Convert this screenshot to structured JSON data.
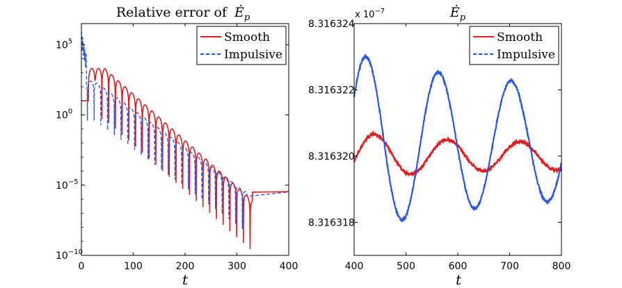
{
  "chart_data": [
    {
      "type": "line",
      "title": "Relative error of Ė_p",
      "title_text": "Relative error of",
      "title_symbol": "Ė",
      "title_subscript": "p",
      "xlabel": "t",
      "ylabel": "",
      "xlim": [
        0,
        400
      ],
      "ylim_log10": [
        -10,
        6.5
      ],
      "yscale": "log",
      "x_ticks": [
        "0",
        "100",
        "200",
        "300",
        "400"
      ],
      "y_ticks": [
        {
          "base": "10",
          "exp": "5"
        },
        {
          "base": "10",
          "exp": "0"
        },
        {
          "base": "10",
          "exp": "−5"
        },
        {
          "base": "10",
          "exp": "−10"
        }
      ],
      "legend_position": "top-right",
      "series": [
        {
          "name": "Smooth",
          "color": "#e41a1c",
          "style": "solid",
          "baseline_log10": 1.0,
          "peak_log10": 3.3,
          "first_peak_t": 45,
          "final_log10": -5.5
        },
        {
          "name": "Impulsive",
          "color": "#2a56e8",
          "style": "dashed",
          "start_log10": 5.4,
          "plateau_log10": 2.4,
          "final_log10": -5.5
        }
      ]
    },
    {
      "type": "line",
      "title": "Ė_p",
      "title_symbol": "Ė",
      "title_subscript": "p",
      "xlabel": "t",
      "ylabel": "",
      "xlim": [
        400,
        800
      ],
      "ylim": [
        8.316317,
        8.316324
      ],
      "y_multiplier": "x 10",
      "y_multiplier_exp": "−7",
      "x_ticks": [
        "400",
        "500",
        "600",
        "700",
        "800"
      ],
      "y_ticks": [
        "8.316318",
        "8.316320",
        "8.316322",
        "8.316324"
      ],
      "legend_position": "top-right",
      "series": [
        {
          "name": "Smooth",
          "color": "#e41a1c",
          "style": "solid",
          "mean": 8.31632,
          "amplitude_start": 7.5e-07,
          "period": 140,
          "phase_t": 440
        },
        {
          "name": "Impulsive",
          "color": "#2a56e8",
          "style": "solid",
          "mean": 8.3163204,
          "amplitude_start": 2.7e-06,
          "period": 140,
          "phase_t": 423
        }
      ]
    }
  ]
}
